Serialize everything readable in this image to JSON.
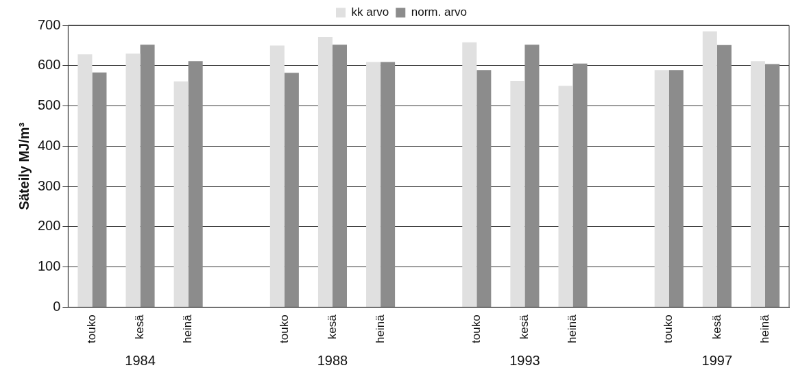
{
  "chart_data": {
    "type": "bar",
    "ylabel": "Säteily MJ/m³",
    "categories": [
      "touko",
      "kesä",
      "heinä",
      null,
      "touko",
      "kesä",
      "heinä",
      null,
      "touko",
      "kesä",
      "heinä",
      null,
      "touko",
      "kesä",
      "heinä"
    ],
    "series": [
      {
        "name": "kk arvo",
        "color": "#e0e0e0",
        "values": [
          628,
          630,
          561,
          null,
          650,
          671,
          609,
          null,
          658,
          562,
          550,
          null,
          589,
          685,
          611
        ]
      },
      {
        "name": "norm. arvo",
        "color": "#8c8c8c",
        "values": [
          583,
          652,
          611,
          null,
          582,
          652,
          609,
          null,
          589,
          652,
          605,
          null,
          589,
          651,
          604
        ]
      }
    ],
    "annotations": [
      "1984",
      "1988",
      "1993",
      "1997"
    ],
    "ylim": [
      0,
      700
    ],
    "yticks": [
      0,
      100,
      200,
      300,
      400,
      500,
      600,
      700
    ],
    "grid": "y",
    "legend": "top"
  }
}
